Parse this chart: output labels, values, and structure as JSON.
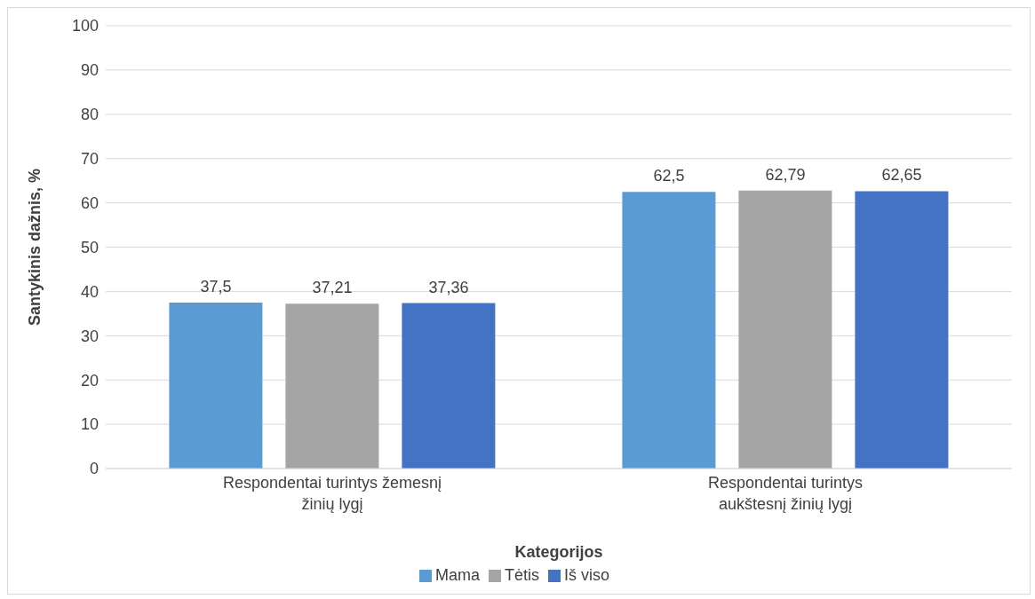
{
  "chart_data": {
    "type": "bar",
    "xlabel": "Kategorijos",
    "ylabel": "Santykinis dažnis, %",
    "categories": [
      "Respondentai turintys žemesnį žinių lygį",
      "Respondentai turintys aukštesnį žinių lygį"
    ],
    "series": [
      {
        "name": "Mama",
        "color": "#5b9bd5",
        "values": [
          37.5,
          62.5
        ],
        "value_labels": [
          "37,5",
          "62,5"
        ]
      },
      {
        "name": "Tėtis",
        "color": "#a5a5a5",
        "values": [
          37.21,
          62.79
        ],
        "value_labels": [
          "37,21",
          "62,79"
        ]
      },
      {
        "name": "Iš viso",
        "color": "#4472c4",
        "values": [
          37.36,
          62.65
        ],
        "value_labels": [
          "37,36",
          "62,65"
        ]
      }
    ],
    "ylim": [
      0,
      100
    ],
    "yticks": [
      0,
      10,
      20,
      30,
      40,
      50,
      60,
      70,
      80,
      90,
      100
    ],
    "grid": "y",
    "legend": "bottom"
  }
}
